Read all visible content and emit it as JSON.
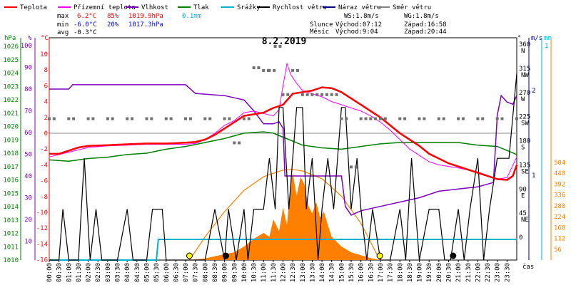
{
  "chart_data": {
    "type": "line",
    "title": "8.2.2019",
    "legend": [
      {
        "label": "Teplota",
        "color": "#ff0000"
      },
      {
        "label": "Přízemní teplota",
        "color": "#ff00ff"
      },
      {
        "label": "Vlhkost",
        "color": "#8000c0"
      },
      {
        "label": "Tlak",
        "color": "#008000"
      },
      {
        "label": "Srážky",
        "color": "#00b0d0"
      },
      {
        "label": "Rychlost větru",
        "color": "#000000"
      },
      {
        "label": "Náraz větru",
        "color": "#000080"
      },
      {
        "label": "Směr větru",
        "color": "#808080"
      }
    ],
    "stats": {
      "max": {
        "label": "max",
        "temp": "6.2°C",
        "hum": "85%",
        "press": "1019.9hPa",
        "rain": "0.1mm"
      },
      "min": {
        "label": "min",
        "temp": "-6.0°C",
        "hum": "20%",
        "press": "1017.3hPa"
      },
      "avg": {
        "label": "avg",
        "temp": "-0.3°C"
      }
    },
    "wind_info": {
      "ws": "WS:1.8m/s",
      "wg": "WG:1.8m/s"
    },
    "sun_info": {
      "label": "Slunce",
      "rise": "Východ:07:12",
      "set": "Západ:16:58"
    },
    "moon_info": {
      "label": "Měsíc",
      "rise": "Východ:9:04",
      "set": "Západ:20:44"
    },
    "axes": {
      "pressure": {
        "unit": "hPa",
        "ticks": [
          "1026",
          "1025",
          "1024",
          "1023",
          "1022",
          "1021",
          "1020",
          "1019",
          "1018",
          "1017",
          "1016",
          "1015",
          "1014",
          "1013",
          "1012",
          "1011",
          "1010"
        ]
      },
      "humidity": {
        "unit": "%",
        "ticks": [
          "100",
          "90",
          "80",
          "70",
          "60",
          "50",
          "40",
          "30",
          "20",
          "10"
        ]
      },
      "temperature": {
        "unit": "°C",
        "ticks": [
          "10",
          "8",
          "6",
          "4",
          "2",
          "0",
          "-2",
          "-4",
          "-6",
          "-8",
          "-10",
          "-12",
          "-14",
          "-16"
        ]
      },
      "direction": {
        "unit": "°",
        "ticks": [
          [
            "360",
            "N"
          ],
          [
            "315",
            "NW"
          ],
          [
            "270",
            "W"
          ],
          [
            "225",
            "SW"
          ],
          [
            "180",
            "S"
          ],
          [
            "135",
            "SE"
          ],
          [
            "90",
            "E"
          ],
          [
            "45",
            "NE"
          ],
          [
            "0",
            ""
          ]
        ]
      },
      "wind": {
        "unit": "m/s",
        "ticks": [
          "2",
          "1"
        ]
      },
      "rain": {
        "unit": "mm",
        "ticks": [
          "1"
        ]
      },
      "solar": {
        "ticks": [
          "504",
          "448",
          "392",
          "336",
          "280",
          "224",
          "168",
          "112",
          "56"
        ]
      },
      "time": {
        "unit": "čas",
        "ticks": [
          "00:00",
          "00:30",
          "01:00",
          "01:30",
          "02:00",
          "02:30",
          "03:00",
          "03:30",
          "04:00",
          "04:30",
          "05:00",
          "05:30",
          "06:00",
          "06:30",
          "07:00",
          "07:30",
          "08:00",
          "08:30",
          "09:00",
          "09:30",
          "10:00",
          "10:30",
          "11:00",
          "11:30",
          "12:00",
          "12:30",
          "13:00",
          "13:30",
          "14:00",
          "14:30",
          "15:00",
          "15:30",
          "16:00",
          "16:30",
          "17:00",
          "17:30",
          "18:00",
          "18:30",
          "19:00",
          "19:30",
          "20:00",
          "20:30",
          "21:00",
          "21:30",
          "22:00",
          "22:30",
          "23:00",
          "23:30"
        ]
      }
    },
    "series": {
      "temperature": [
        [
          0,
          -2.6
        ],
        [
          0.5,
          -2.6
        ],
        [
          1,
          -2.2
        ],
        [
          1.5,
          -1.8
        ],
        [
          2,
          -1.6
        ],
        [
          3,
          -1.5
        ],
        [
          4,
          -1.4
        ],
        [
          5,
          -1.3
        ],
        [
          6,
          -1.3
        ],
        [
          7,
          -1.2
        ],
        [
          7.5,
          -1.1
        ],
        [
          8,
          -0.8
        ],
        [
          8.5,
          -0.2
        ],
        [
          9,
          0.6
        ],
        [
          9.5,
          1.4
        ],
        [
          10,
          2.2
        ],
        [
          10.5,
          2.4
        ],
        [
          11,
          2.6
        ],
        [
          11.5,
          3.2
        ],
        [
          12,
          3.6
        ],
        [
          12.5,
          5.0
        ],
        [
          13,
          5.2
        ],
        [
          13.5,
          5.4
        ],
        [
          14,
          5.8
        ],
        [
          14.5,
          5.7
        ],
        [
          15,
          5.2
        ],
        [
          15.5,
          4.4
        ],
        [
          16,
          3.6
        ],
        [
          16.5,
          2.8
        ],
        [
          17,
          2.0
        ],
        [
          17.5,
          1.0
        ],
        [
          18,
          0.0
        ],
        [
          18.5,
          -0.8
        ],
        [
          19,
          -1.6
        ],
        [
          19.5,
          -2.6
        ],
        [
          20,
          -3.2
        ],
        [
          20.5,
          -3.8
        ],
        [
          21,
          -4.2
        ],
        [
          21.5,
          -4.6
        ],
        [
          22,
          -5.0
        ],
        [
          22.5,
          -5.4
        ],
        [
          23,
          -5.8
        ],
        [
          23.5,
          -5.9
        ],
        [
          23.8,
          -5.4
        ],
        [
          24,
          -4.0
        ]
      ],
      "ground_temperature": [
        [
          0,
          -3.0
        ],
        [
          1,
          -2.4
        ],
        [
          2,
          -1.8
        ],
        [
          3,
          -1.6
        ],
        [
          4,
          -1.5
        ],
        [
          5,
          -1.4
        ],
        [
          6,
          -1.4
        ],
        [
          7,
          -1.4
        ],
        [
          7.5,
          -1.3
        ],
        [
          8,
          -0.8
        ],
        [
          8.5,
          0.0
        ],
        [
          9,
          1.0
        ],
        [
          9.5,
          1.6
        ],
        [
          10,
          2.6
        ],
        [
          10.5,
          2.8
        ],
        [
          11,
          2.5
        ],
        [
          11.5,
          2.2
        ],
        [
          11.8,
          3.0
        ],
        [
          12,
          6.0
        ],
        [
          12.2,
          8.8
        ],
        [
          12.4,
          7.4
        ],
        [
          12.7,
          6.3
        ],
        [
          13,
          5.4
        ],
        [
          13.5,
          5.0
        ],
        [
          14,
          4.6
        ],
        [
          14.5,
          4.0
        ],
        [
          15,
          3.6
        ],
        [
          15.5,
          3.2
        ],
        [
          16,
          2.8
        ],
        [
          16.5,
          2.2
        ],
        [
          17,
          1.4
        ],
        [
          17.5,
          0.4
        ],
        [
          18,
          -0.8
        ],
        [
          18.5,
          -2.0
        ],
        [
          19,
          -2.8
        ],
        [
          19.5,
          -3.6
        ],
        [
          20,
          -4.0
        ],
        [
          21,
          -4.4
        ],
        [
          22,
          -4.9
        ],
        [
          23,
          -5.8
        ],
        [
          23.5,
          -5.6
        ],
        [
          24,
          -3.0
        ]
      ],
      "humidity": [
        [
          0,
          80
        ],
        [
          1,
          80
        ],
        [
          1.2,
          82
        ],
        [
          2,
          82
        ],
        [
          5,
          82
        ],
        [
          5.5,
          82
        ],
        [
          6,
          82
        ],
        [
          6.5,
          82
        ],
        [
          7,
          82
        ],
        [
          7.5,
          78
        ],
        [
          9,
          77
        ],
        [
          10,
          75
        ],
        [
          10.5,
          70
        ],
        [
          11,
          64
        ],
        [
          11.5,
          64
        ],
        [
          11.8,
          65
        ],
        [
          12,
          62
        ],
        [
          12.1,
          40
        ],
        [
          13,
          40
        ],
        [
          14,
          40
        ],
        [
          14.5,
          40
        ],
        [
          15,
          40
        ],
        [
          15.2,
          26
        ],
        [
          15.5,
          22
        ],
        [
          16,
          24
        ],
        [
          17,
          26
        ],
        [
          18,
          28
        ],
        [
          19,
          30
        ],
        [
          20,
          33
        ],
        [
          21,
          34
        ],
        [
          22,
          35
        ],
        [
          22.8,
          37
        ],
        [
          23,
          68
        ],
        [
          23.2,
          77
        ],
        [
          23.5,
          74
        ],
        [
          23.8,
          73
        ],
        [
          24,
          77
        ]
      ],
      "pressure": [
        [
          0,
          1017.5
        ],
        [
          1,
          1017.4
        ],
        [
          2,
          1017.6
        ],
        [
          3,
          1017.7
        ],
        [
          4,
          1017.9
        ],
        [
          5,
          1018.0
        ],
        [
          6,
          1018.3
        ],
        [
          7,
          1018.5
        ],
        [
          8,
          1018.8
        ],
        [
          9,
          1019.1
        ],
        [
          10,
          1019.5
        ],
        [
          11,
          1019.6
        ],
        [
          11.5,
          1019.5
        ],
        [
          12,
          1019.2
        ],
        [
          12.5,
          1018.9
        ],
        [
          13,
          1018.6
        ],
        [
          14,
          1018.4
        ],
        [
          15,
          1018.3
        ],
        [
          16,
          1018.5
        ],
        [
          17,
          1018.7
        ],
        [
          18,
          1018.8
        ],
        [
          19,
          1018.8
        ],
        [
          20,
          1018.8
        ],
        [
          21,
          1018.8
        ],
        [
          22,
          1018.6
        ],
        [
          23,
          1018.5
        ],
        [
          23.5,
          1018.2
        ],
        [
          24,
          1017.9
        ]
      ],
      "rain_total": [
        [
          0,
          0
        ],
        [
          5.5,
          0
        ],
        [
          5.6,
          0.1
        ],
        [
          24,
          0.1
        ]
      ],
      "wind_speed": [
        [
          0,
          0
        ],
        [
          0.5,
          0
        ],
        [
          0.7,
          0.6
        ],
        [
          1,
          0
        ],
        [
          1.5,
          0
        ],
        [
          1.8,
          1.2
        ],
        [
          2.1,
          0
        ],
        [
          2.4,
          0.6
        ],
        [
          2.7,
          0
        ],
        [
          3,
          0
        ],
        [
          3.5,
          0
        ],
        [
          4,
          0.6
        ],
        [
          4.3,
          0
        ],
        [
          5,
          0
        ],
        [
          5.3,
          0.6
        ],
        [
          5.8,
          0.6
        ],
        [
          6,
          0
        ],
        [
          7,
          0
        ],
        [
          8,
          0
        ],
        [
          8.5,
          0.6
        ],
        [
          9,
          0
        ],
        [
          9.2,
          0.6
        ],
        [
          9.6,
          0
        ],
        [
          10,
          0.6
        ],
        [
          10.2,
          0
        ],
        [
          10.5,
          0.6
        ],
        [
          11,
          0.6
        ],
        [
          11.3,
          1.2
        ],
        [
          11.6,
          0.6
        ],
        [
          11.8,
          1.8
        ],
        [
          12,
          1.8
        ],
        [
          12.3,
          0.6
        ],
        [
          12.5,
          1.2
        ],
        [
          12.7,
          1.8
        ],
        [
          13,
          1.8
        ],
        [
          13.2,
          0.6
        ],
        [
          13.5,
          1.2
        ],
        [
          13.8,
          0
        ],
        [
          14,
          0.6
        ],
        [
          14.3,
          1.2
        ],
        [
          14.6,
          0.6
        ],
        [
          15,
          1.8
        ],
        [
          15.2,
          1.8
        ],
        [
          15.5,
          0.6
        ],
        [
          15.8,
          1.2
        ],
        [
          16,
          0.6
        ],
        [
          16.3,
          0
        ],
        [
          16.6,
          0.6
        ],
        [
          17,
          0
        ],
        [
          17.5,
          0
        ],
        [
          18,
          0.6
        ],
        [
          18.3,
          0
        ],
        [
          18.6,
          1.2
        ],
        [
          19,
          0
        ],
        [
          19.5,
          0.6
        ],
        [
          20,
          0.6
        ],
        [
          20.3,
          0
        ],
        [
          20.6,
          0
        ],
        [
          21,
          0.6
        ],
        [
          21.3,
          0
        ],
        [
          21.6,
          0.6
        ],
        [
          22,
          1.2
        ],
        [
          22.3,
          0
        ],
        [
          22.6,
          0.6
        ],
        [
          23,
          1.2
        ],
        [
          23.3,
          1.2
        ],
        [
          23.6,
          1.2
        ],
        [
          24,
          2.2
        ]
      ],
      "solar_radiation": [
        [
          7.2,
          0
        ],
        [
          8,
          8
        ],
        [
          8.5,
          20
        ],
        [
          9,
          30
        ],
        [
          9.5,
          40
        ],
        [
          10,
          70
        ],
        [
          10.5,
          110
        ],
        [
          11,
          140
        ],
        [
          11.3,
          120
        ],
        [
          11.5,
          210
        ],
        [
          11.8,
          150
        ],
        [
          12,
          270
        ],
        [
          12.2,
          180
        ],
        [
          12.4,
          400
        ],
        [
          12.5,
          450
        ],
        [
          12.7,
          330
        ],
        [
          12.9,
          430
        ],
        [
          13.1,
          390
        ],
        [
          13.3,
          280
        ],
        [
          13.5,
          240
        ],
        [
          13.7,
          300
        ],
        [
          13.9,
          220
        ],
        [
          14.1,
          250
        ],
        [
          14.3,
          180
        ],
        [
          14.5,
          120
        ],
        [
          14.8,
          90
        ],
        [
          15,
          70
        ],
        [
          15.5,
          40
        ],
        [
          16,
          25
        ],
        [
          16.5,
          10
        ],
        [
          17,
          0
        ]
      ],
      "solar_max": [
        [
          7.2,
          0
        ],
        [
          8,
          120
        ],
        [
          9,
          250
        ],
        [
          10,
          360
        ],
        [
          11,
          430
        ],
        [
          12,
          465
        ],
        [
          12.5,
          468
        ],
        [
          13,
          460
        ],
        [
          14,
          420
        ],
        [
          15,
          330
        ],
        [
          16,
          190
        ],
        [
          16.97,
          0
        ]
      ],
      "wind_direction": [
        [
          0,
          225
        ],
        [
          1,
          225
        ],
        [
          2,
          225
        ],
        [
          3,
          225
        ],
        [
          4,
          225
        ],
        [
          5,
          225
        ],
        [
          6,
          225
        ],
        [
          7,
          225
        ],
        [
          8,
          225
        ],
        [
          9,
          225
        ],
        [
          9.5,
          180
        ],
        [
          10,
          225
        ],
        [
          10.5,
          320
        ],
        [
          11,
          315
        ],
        [
          11.3,
          315
        ],
        [
          11.6,
          360
        ],
        [
          12,
          270
        ],
        [
          12.5,
          315
        ],
        [
          13,
          270
        ],
        [
          13.5,
          270
        ],
        [
          14,
          270
        ],
        [
          14.5,
          270
        ],
        [
          15,
          225
        ],
        [
          15.5,
          135
        ],
        [
          16,
          225
        ],
        [
          16.5,
          225
        ],
        [
          17,
          225
        ],
        [
          18,
          225
        ],
        [
          19,
          225
        ],
        [
          20,
          225
        ],
        [
          21,
          225
        ],
        [
          22,
          225
        ],
        [
          23,
          225
        ],
        [
          24,
          225
        ]
      ]
    }
  }
}
